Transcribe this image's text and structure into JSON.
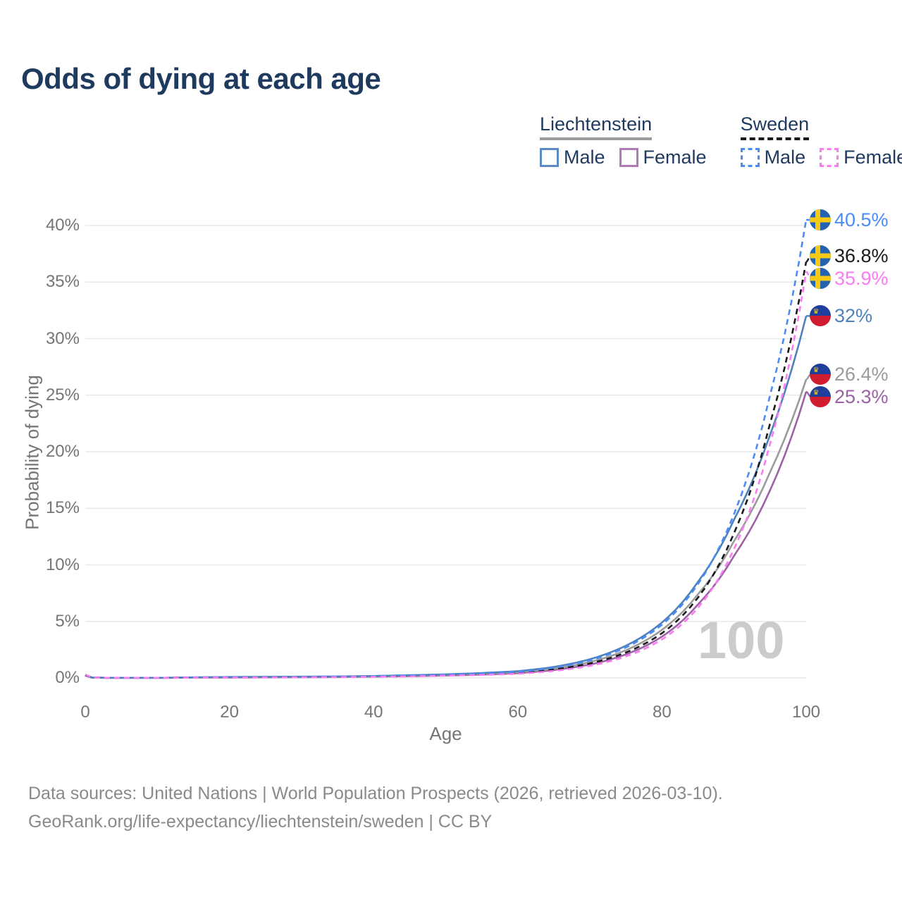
{
  "title": "Odds of dying at each age",
  "watermark": "100",
  "footer": {
    "line1": "Data sources: United Nations | World Population Prospects (2026, retrieved 2026-03-10).",
    "line2": "GeoRank.org/life-expectancy/liechtenstein/sweden | CC BY"
  },
  "theme": {
    "title_color": "#1f3a5f",
    "legend_text_color": "#1f3a5f",
    "tick_text_color": "#757575",
    "grid_color": "#e9e9e9",
    "watermark_color": "#cbcbcb",
    "footer_color": "#8a8a8a"
  },
  "legend": {
    "groups": [
      {
        "name": "Liechtenstein",
        "line_style": "solid",
        "underline_color": "#9b9b9b",
        "items": [
          {
            "label": "Male",
            "color": "#5b8ac4"
          },
          {
            "label": "Female",
            "color": "#b07ab5"
          }
        ]
      },
      {
        "name": "Sweden",
        "line_style": "dashed",
        "underline_color": "#1a1a1a",
        "items": [
          {
            "label": "Male",
            "color": "#4b8bf5"
          },
          {
            "label": "Female",
            "color": "#fb7bf3"
          }
        ]
      }
    ]
  },
  "flags": {
    "Sweden": {
      "base": "#2563ae",
      "cross": "#f6c915"
    },
    "Liechtenstein": {
      "top": "#1e3f9c",
      "bottom": "#d01c31",
      "crown": "#f6c915"
    }
  },
  "chart_data": {
    "type": "line",
    "title": "Odds of dying at each age",
    "xlabel": "Age",
    "ylabel": "Probability of dying",
    "x_ticks": [
      0,
      20,
      40,
      60,
      80,
      100
    ],
    "y_ticks": [
      {
        "value": 0,
        "label": "0%"
      },
      {
        "value": 5,
        "label": "5%"
      },
      {
        "value": 10,
        "label": "10%"
      },
      {
        "value": 15,
        "label": "15%"
      },
      {
        "value": 20,
        "label": "20%"
      },
      {
        "value": 25,
        "label": "25%"
      },
      {
        "value": 30,
        "label": "30%"
      },
      {
        "value": 35,
        "label": "35%"
      },
      {
        "value": 40,
        "label": "40%"
      }
    ],
    "xlim": [
      0,
      100
    ],
    "ylim": [
      0,
      40.5
    ],
    "grid": "horizontal-only",
    "legend_position": "top-right",
    "ages": [
      0,
      1,
      5,
      10,
      15,
      20,
      25,
      30,
      35,
      40,
      45,
      50,
      55,
      60,
      65,
      70,
      75,
      80,
      85,
      90,
      95,
      100
    ],
    "series": [
      {
        "name": "Sweden Male",
        "country": "Sweden",
        "sex": "male",
        "color": "#4b8bf5",
        "dashed": true,
        "end_label": "40.5%",
        "end_value": 40.5,
        "values_pct": [
          0.28,
          0.02,
          0.01,
          0.01,
          0.05,
          0.08,
          0.09,
          0.1,
          0.12,
          0.16,
          0.22,
          0.3,
          0.4,
          0.55,
          0.9,
          1.55,
          2.7,
          4.7,
          8.3,
          14.5,
          25.0,
          40.5
        ]
      },
      {
        "name": "Sweden Total",
        "country": "Sweden",
        "sex": "total",
        "color": "#1a1a1a",
        "dashed": true,
        "end_label": "36.8%",
        "end_value": 36.8,
        "values_pct": [
          0.24,
          0.02,
          0.01,
          0.01,
          0.04,
          0.06,
          0.07,
          0.08,
          0.1,
          0.13,
          0.18,
          0.25,
          0.33,
          0.45,
          0.75,
          1.28,
          2.25,
          3.95,
          7.1,
          12.8,
          22.5,
          36.8
        ]
      },
      {
        "name": "Sweden Female",
        "country": "Sweden",
        "sex": "female",
        "color": "#fb7bf3",
        "dashed": true,
        "end_label": "35.9%",
        "end_value": 35.9,
        "values_pct": [
          0.3,
          0.02,
          0.01,
          0.01,
          0.02,
          0.03,
          0.04,
          0.05,
          0.07,
          0.1,
          0.14,
          0.2,
          0.27,
          0.37,
          0.62,
          1.07,
          1.9,
          3.4,
          6.2,
          11.4,
          20.7,
          35.9
        ]
      },
      {
        "name": "Liechtenstein Male",
        "country": "Liechtenstein",
        "sex": "male",
        "color": "#4f81bd",
        "dashed": false,
        "end_label": "32%",
        "end_value": 32,
        "values_pct": [
          0.26,
          0.02,
          0.01,
          0.01,
          0.05,
          0.08,
          0.1,
          0.11,
          0.13,
          0.17,
          0.24,
          0.32,
          0.43,
          0.6,
          0.97,
          1.65,
          2.85,
          4.9,
          8.5,
          14.0,
          21.5,
          32.0
        ]
      },
      {
        "name": "Liechtenstein Total",
        "country": "Liechtenstein",
        "sex": "total",
        "color": "#9b9b9b",
        "dashed": false,
        "end_label": "26.4%",
        "end_value": 26.4,
        "values_pct": [
          0.24,
          0.02,
          0.01,
          0.01,
          0.04,
          0.07,
          0.08,
          0.09,
          0.11,
          0.14,
          0.19,
          0.27,
          0.36,
          0.5,
          0.82,
          1.4,
          2.45,
          4.25,
          7.4,
          12.1,
          18.2,
          26.4
        ]
      },
      {
        "name": "Liechtenstein Female",
        "country": "Liechtenstein",
        "sex": "female",
        "color": "#9c62a6",
        "dashed": false,
        "end_label": "25.3%",
        "end_value": 25.3,
        "values_pct": [
          0.22,
          0.02,
          0.01,
          0.01,
          0.03,
          0.04,
          0.05,
          0.06,
          0.08,
          0.11,
          0.15,
          0.21,
          0.29,
          0.42,
          0.7,
          1.18,
          2.08,
          3.65,
          6.5,
          10.8,
          16.6,
          25.3
        ]
      }
    ]
  }
}
